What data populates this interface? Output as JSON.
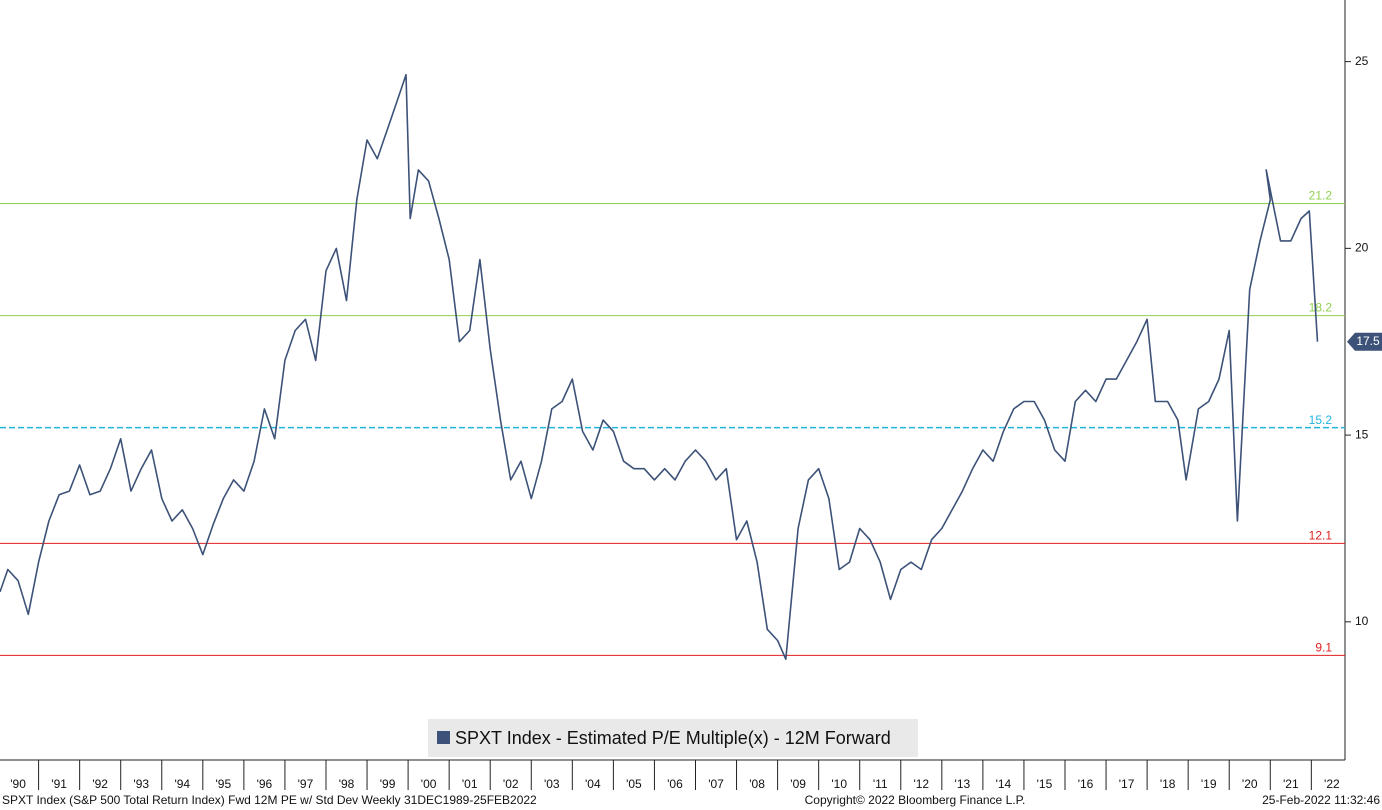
{
  "chart_data": {
    "type": "line",
    "series": [
      {
        "name": "SPXT Index - Estimated P/E Multiple(x) - 12M Forward",
        "color": "#3d5278",
        "values": [
          10.8,
          11.4,
          11.1,
          10.2,
          11.6,
          12.7,
          13.4,
          13.5,
          14.2,
          13.4,
          13.5,
          14.1,
          14.9,
          13.5,
          14.1,
          14.6,
          13.3,
          12.7,
          13.0,
          12.5,
          11.8,
          12.6,
          13.3,
          13.8,
          13.5,
          14.3,
          15.7,
          14.9,
          17.0,
          17.8,
          18.1,
          17.0,
          19.4,
          20.0,
          18.6,
          21.3,
          22.9,
          22.4,
          23.2,
          24.0,
          24.65,
          20.8,
          22.1,
          21.8,
          20.8,
          19.7,
          17.5,
          17.8,
          19.7,
          17.3,
          15.4,
          13.8,
          14.3,
          13.3,
          14.3,
          15.7,
          15.9,
          16.5,
          15.1,
          14.6,
          15.4,
          15.1,
          14.3,
          14.1,
          14.1,
          13.8,
          14.1,
          13.8,
          14.3,
          14.6,
          14.3,
          13.8,
          14.1,
          12.2,
          12.7,
          11.6,
          9.8,
          9.5,
          9.0,
          12.5,
          13.8,
          14.1,
          13.3,
          11.4,
          11.6,
          12.5,
          12.2,
          11.6,
          10.6,
          11.4,
          11.6,
          11.4,
          12.2,
          12.5,
          13.0,
          13.5,
          14.1,
          14.6,
          14.3,
          15.1,
          15.7,
          15.9,
          15.9,
          15.4,
          14.6,
          14.3,
          15.9,
          16.2,
          15.9,
          16.5,
          16.5,
          17.0,
          17.5,
          18.1,
          15.9,
          15.9,
          15.4,
          13.8,
          15.7,
          15.9,
          16.5,
          17.8,
          12.7,
          18.9,
          20.2,
          21.3,
          22.1,
          20.2,
          20.2,
          20.8,
          21.0,
          17.5
        ]
      }
    ],
    "x": [
      1990.06,
      1990.25,
      1990.5,
      1990.75,
      1991.0,
      1991.25,
      1991.5,
      1991.75,
      1992.0,
      1992.25,
      1992.5,
      1992.75,
      1993.0,
      1993.25,
      1993.5,
      1993.75,
      1994.0,
      1994.25,
      1994.5,
      1994.75,
      1995.0,
      1995.25,
      1995.5,
      1995.75,
      1996.0,
      1996.25,
      1996.5,
      1996.75,
      1997.0,
      1997.25,
      1997.5,
      1997.75,
      1998.0,
      1998.25,
      1998.5,
      1998.75,
      1999.0,
      1999.25,
      1999.5,
      1999.75,
      1999.95,
      2000.05,
      2000.25,
      2000.5,
      2000.75,
      2001.0,
      2001.25,
      2001.5,
      2001.75,
      2002.0,
      2002.25,
      2002.5,
      2002.75,
      2003.0,
      2003.25,
      2003.5,
      2003.75,
      2004.0,
      2004.25,
      2004.5,
      2004.75,
      2005.0,
      2005.25,
      2005.5,
      2005.75,
      2006.0,
      2006.25,
      2006.5,
      2006.75,
      2007.0,
      2007.25,
      2007.5,
      2007.75,
      2008.0,
      2008.25,
      2008.5,
      2008.75,
      2009.0,
      2009.2,
      2009.5,
      2009.75,
      2010.0,
      2010.25,
      2010.5,
      2010.75,
      2011.0,
      2011.25,
      2011.5,
      2011.75,
      2012.0,
      2012.25,
      2012.5,
      2012.75,
      2013.0,
      2013.25,
      2013.5,
      2013.75,
      2014.0,
      2014.25,
      2014.5,
      2014.75,
      2015.0,
      2015.25,
      2015.5,
      2015.75,
      2016.0,
      2016.25,
      2016.5,
      2016.75,
      2017.0,
      2017.25,
      2017.5,
      2017.75,
      2018.0,
      2018.2,
      2018.5,
      2018.75,
      2018.95,
      2019.25,
      2019.5,
      2019.75,
      2020.0,
      2020.2,
      2020.5,
      2020.75,
      2021.0,
      2020.9,
      2021.25,
      2021.5,
      2021.75,
      2021.95,
      2022.15
    ],
    "xlim": [
      1990.06,
      2022.82
    ],
    "xticks": [
      {
        "value": 1990.5,
        "label": "'90"
      },
      {
        "value": 1991.5,
        "label": "'91"
      },
      {
        "value": 1992.5,
        "label": "'92"
      },
      {
        "value": 1993.5,
        "label": "'93"
      },
      {
        "value": 1994.5,
        "label": "'94"
      },
      {
        "value": 1995.5,
        "label": "'95"
      },
      {
        "value": 1996.5,
        "label": "'96"
      },
      {
        "value": 1997.5,
        "label": "'97"
      },
      {
        "value": 1998.5,
        "label": "'98"
      },
      {
        "value": 1999.5,
        "label": "'99"
      },
      {
        "value": 2000.5,
        "label": "'00"
      },
      {
        "value": 2001.5,
        "label": "'01"
      },
      {
        "value": 2002.5,
        "label": "'02"
      },
      {
        "value": 2003.5,
        "label": "'03"
      },
      {
        "value": 2004.5,
        "label": "'04"
      },
      {
        "value": 2005.5,
        "label": "'05"
      },
      {
        "value": 2006.5,
        "label": "'06"
      },
      {
        "value": 2007.5,
        "label": "'07"
      },
      {
        "value": 2008.5,
        "label": "'08"
      },
      {
        "value": 2009.5,
        "label": "'09"
      },
      {
        "value": 2010.5,
        "label": "'10"
      },
      {
        "value": 2011.5,
        "label": "'11"
      },
      {
        "value": 2012.5,
        "label": "'12"
      },
      {
        "value": 2013.5,
        "label": "'13"
      },
      {
        "value": 2014.5,
        "label": "'14"
      },
      {
        "value": 2015.5,
        "label": "'15"
      },
      {
        "value": 2016.5,
        "label": "'16"
      },
      {
        "value": 2017.5,
        "label": "'17"
      },
      {
        "value": 2018.5,
        "label": "'18"
      },
      {
        "value": 2019.5,
        "label": "'19"
      },
      {
        "value": 2020.5,
        "label": "'20"
      },
      {
        "value": 2021.5,
        "label": "'21"
      },
      {
        "value": 2022.5,
        "label": "'22"
      }
    ],
    "ylim": [
      6.3,
      26.65
    ],
    "yticks": [
      10,
      15,
      20,
      25
    ],
    "reference_lines": [
      {
        "value": 21.2,
        "color": "#8fd14f",
        "style": "solid"
      },
      {
        "value": 18.2,
        "color": "#8fd14f",
        "style": "solid"
      },
      {
        "value": 15.2,
        "color": "#22b5e0",
        "style": "dashed"
      },
      {
        "value": 12.1,
        "color": "#e02020",
        "style": "solid"
      },
      {
        "value": 9.1,
        "color": "#e02020",
        "style": "solid"
      }
    ],
    "last_value": 17.5,
    "footer": {
      "left": "SPXT Index (S&P 500 Total Return Index) Fwd 12M PE w/ Std Dev  Weekly 31DEC1989-25FEB2022",
      "center": "Copyright© 2022 Bloomberg Finance L.P.",
      "right": "25-Feb-2022 11:32:46"
    }
  }
}
